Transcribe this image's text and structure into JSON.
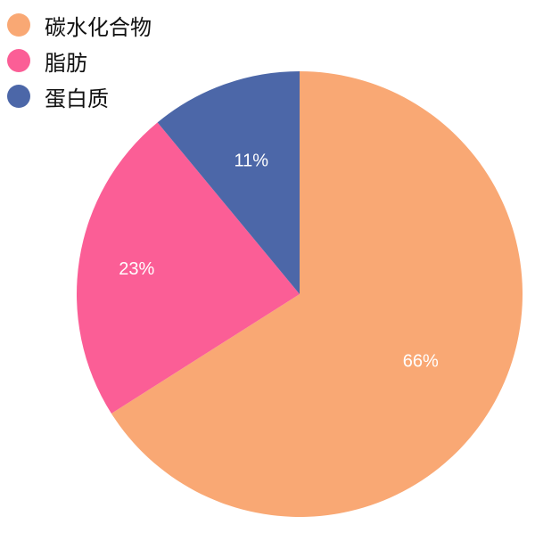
{
  "chart_data": {
    "type": "pie",
    "categories": [
      "碳水化合物",
      "脂肪",
      "蛋白质"
    ],
    "values": [
      66,
      23,
      11
    ],
    "labels": [
      "66%",
      "23%",
      "11%"
    ],
    "colors": [
      "#f9a874",
      "#fb5e96",
      "#4c67a8"
    ],
    "legend": "top-left"
  }
}
